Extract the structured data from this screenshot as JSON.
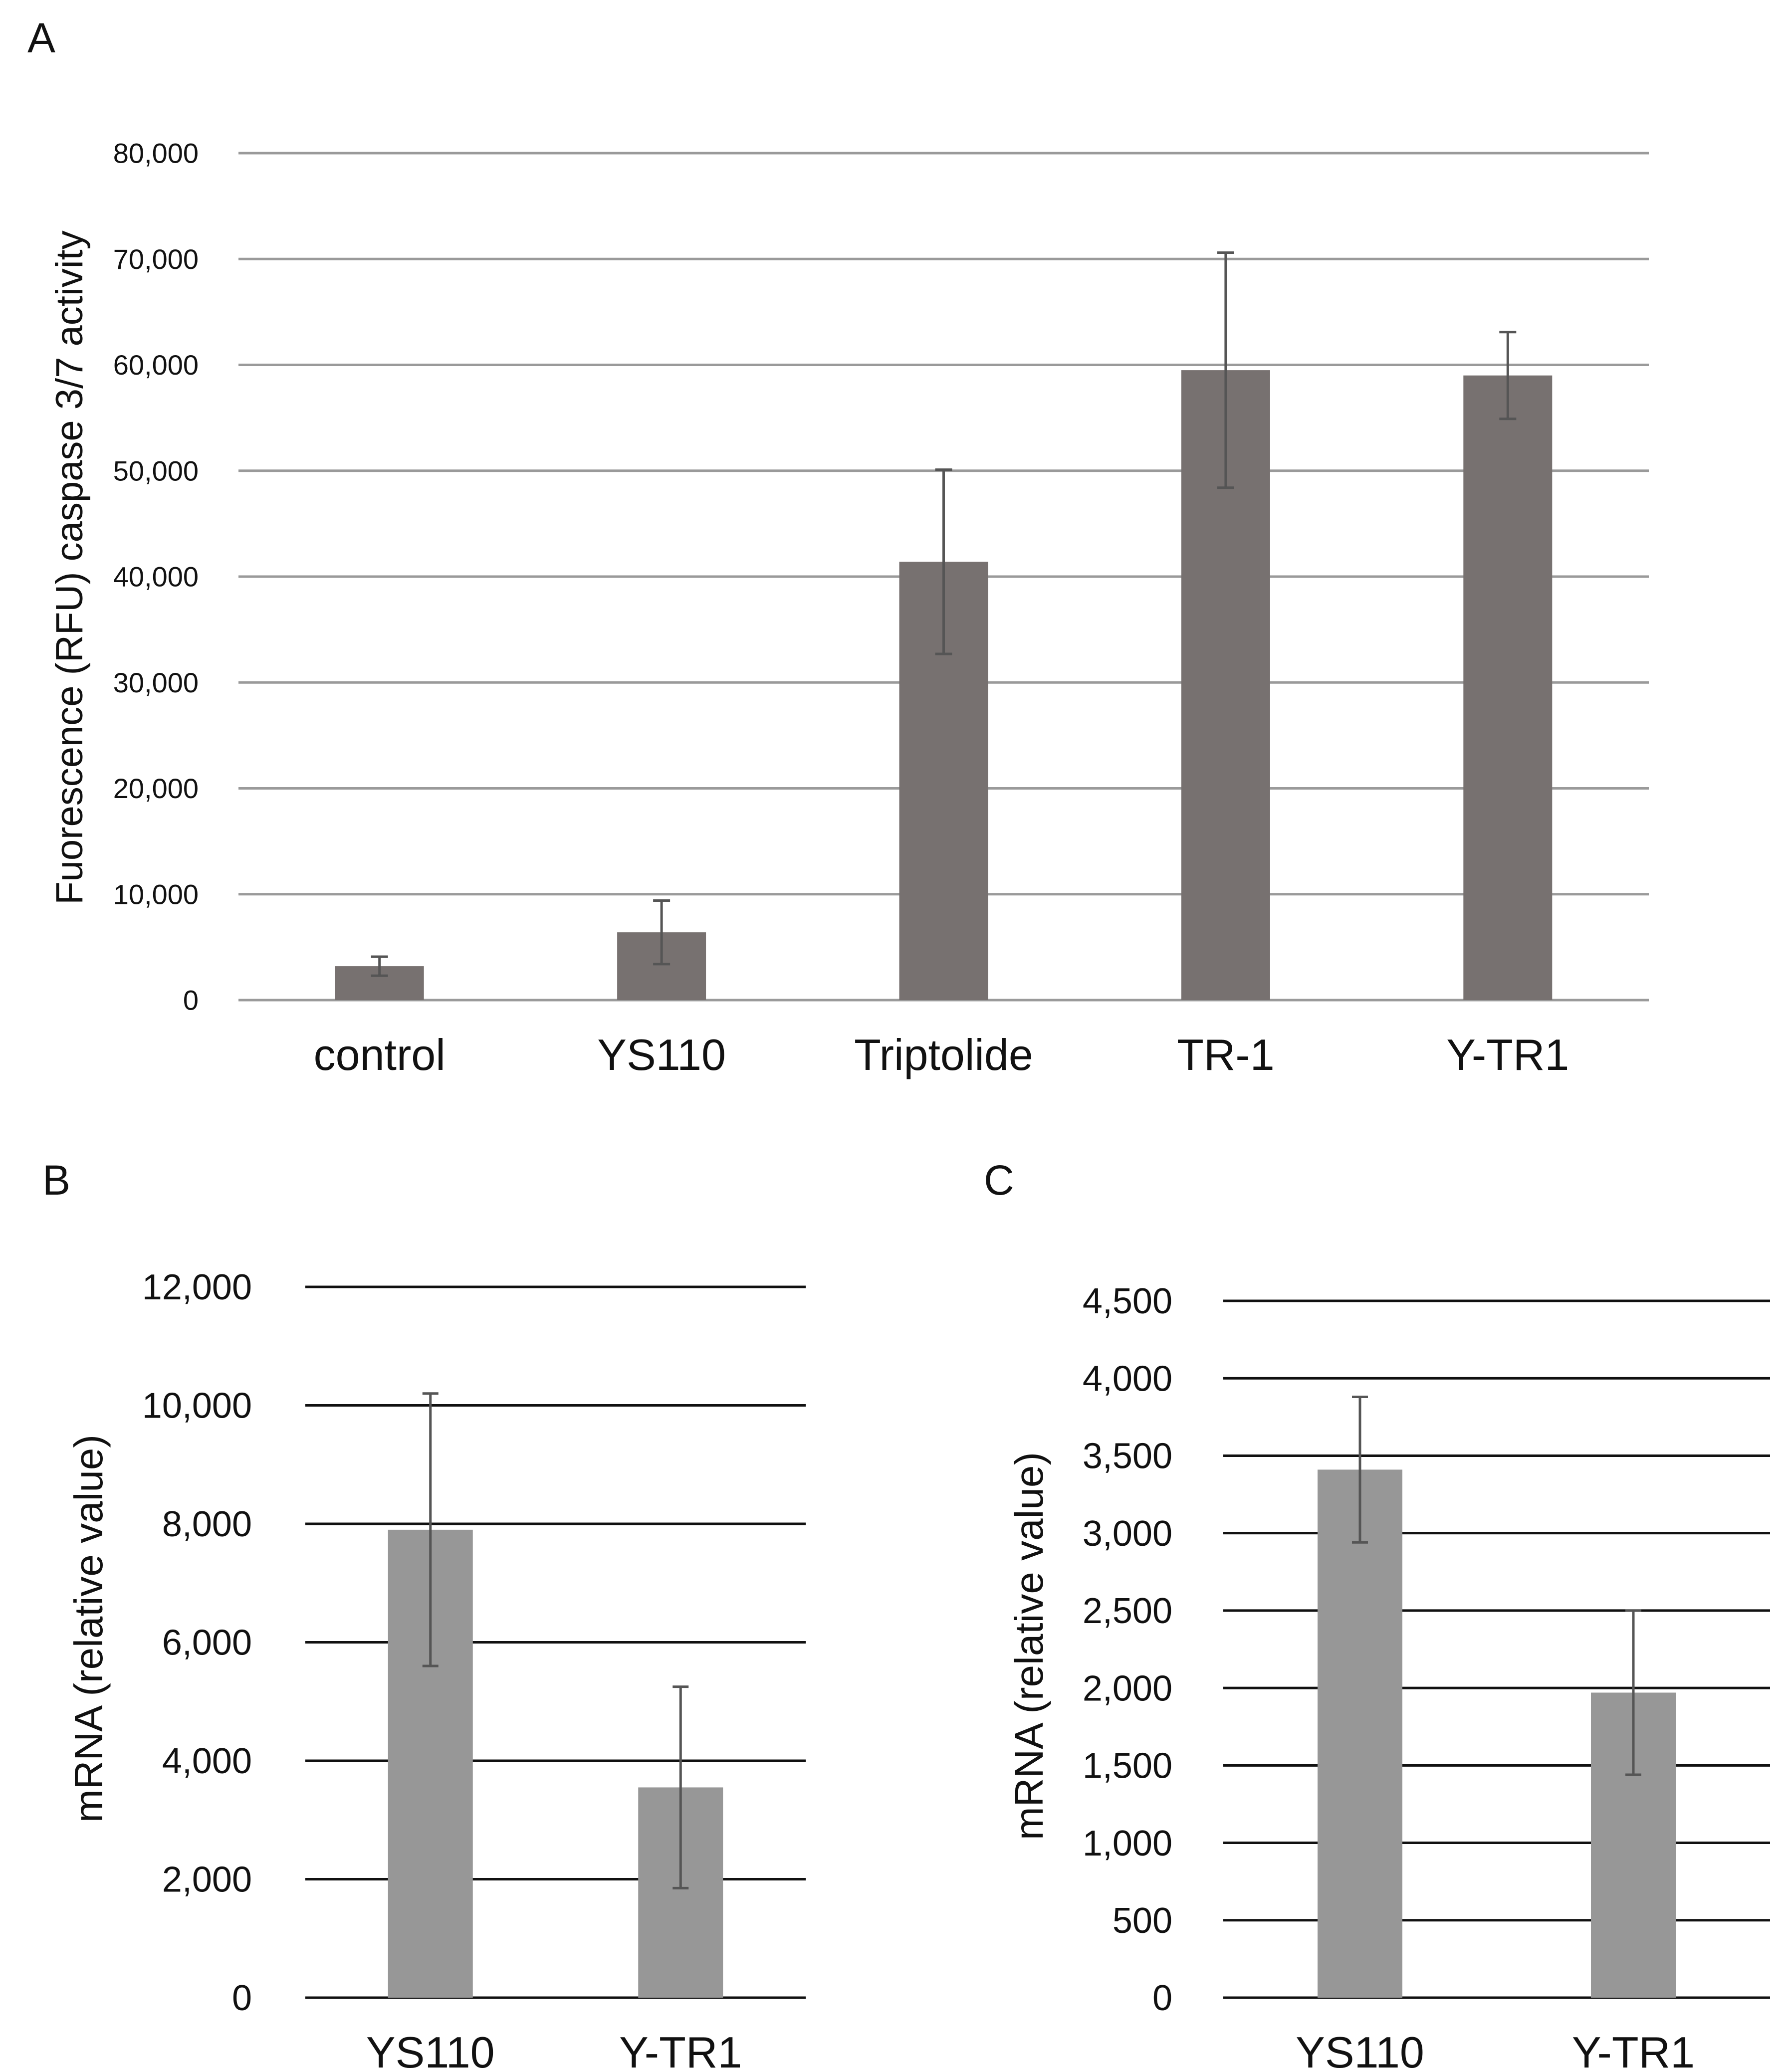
{
  "figure": {
    "colors": {
      "panel_a_bar": "#777170",
      "panel_bc_bar": "#979797",
      "panel_a_grid": "#9a9a9a",
      "panel_bc_grid": "#111111",
      "error_bar": "#555555",
      "text": "#111111"
    }
  },
  "chart_data": [
    {
      "panel": "A",
      "type": "bar",
      "title": "",
      "xlabel": "",
      "ylabel": "Fuorescence (RFU) caspase 3/7 activity",
      "categories": [
        "control",
        "YS110",
        "Triptolide",
        "TR-1",
        "Y-TR1"
      ],
      "values": [
        3200,
        6400,
        41400,
        59500,
        59000
      ],
      "errors": [
        900,
        3000,
        8700,
        11100,
        4100
      ],
      "ylim": [
        0,
        80000
      ],
      "yticks": [
        0,
        10000,
        20000,
        30000,
        40000,
        50000,
        60000,
        70000,
        80000
      ],
      "ytick_labels": [
        "0",
        "10,000",
        "20,000",
        "30,000",
        "40,000",
        "50,000",
        "60,000",
        "70,000",
        "80,000"
      ],
      "grid": true,
      "legend": "none"
    },
    {
      "panel": "B",
      "type": "bar",
      "title": "",
      "xlabel": "",
      "ylabel": "mRNA (relative value)",
      "categories": [
        "YS110",
        "Y-TR1"
      ],
      "values": [
        7900,
        3550
      ],
      "errors": [
        2300,
        1700
      ],
      "ylim": [
        0,
        12000
      ],
      "yticks": [
        0,
        2000,
        4000,
        6000,
        8000,
        10000,
        12000
      ],
      "ytick_labels": [
        "0",
        "2,000",
        "4,000",
        "6,000",
        "8,000",
        "10,000",
        "12,000"
      ],
      "grid": true,
      "legend": "none"
    },
    {
      "panel": "C",
      "type": "bar",
      "title": "",
      "xlabel": "",
      "ylabel": "mRNA (relative value)",
      "categories": [
        "YS110",
        "Y-TR1"
      ],
      "values": [
        3410,
        1970
      ],
      "errors": [
        470,
        530
      ],
      "ylim": [
        0,
        4500
      ],
      "yticks": [
        0,
        500,
        1000,
        1500,
        2000,
        2500,
        3000,
        3500,
        4000,
        4500
      ],
      "ytick_labels": [
        "0",
        "500",
        "1,000",
        "1,500",
        "2,000",
        "2,500",
        "3,000",
        "3,500",
        "4,000",
        "4,500"
      ],
      "grid": true,
      "legend": "none"
    }
  ]
}
